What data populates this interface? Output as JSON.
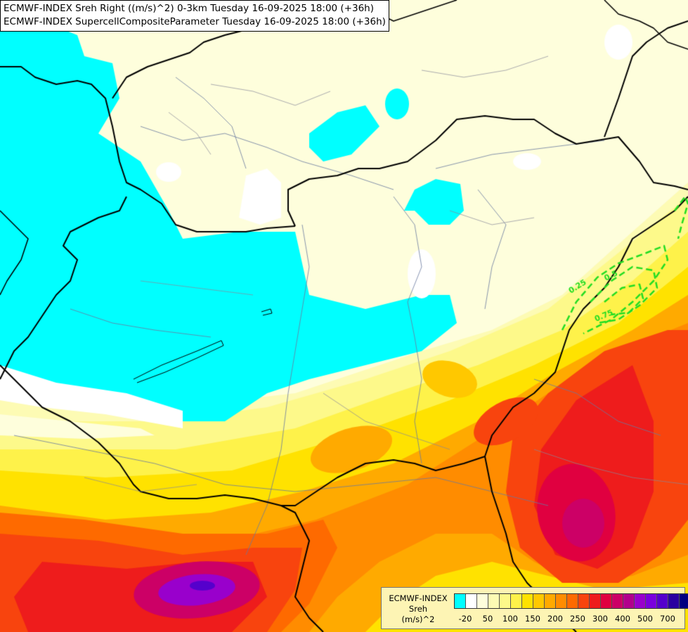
{
  "header": {
    "line1": "ECMWF-INDEX Sreh Right ((m/s)^2) 0-3km Tuesday 16-09-2025 18:00 (+36h)",
    "line2": "ECMWF-INDEX SupercellCompositeParameter Tuesday 16-09-2025 18:00 (+36h)"
  },
  "legend": {
    "title_line1": "ECMWF-INDEX",
    "title_line2": "Sreh",
    "title_line3": "(m/s)^2",
    "colors": [
      "#00ffff",
      "#ffffff",
      "#fefedc",
      "#fdfbb4",
      "#fdf98a",
      "#fef24a",
      "#ffe200",
      "#ffc800",
      "#ffaa00",
      "#ff8c00",
      "#fe6a00",
      "#f8440e",
      "#ee1c1c",
      "#e00040",
      "#cc0066",
      "#b2008c",
      "#9900cc",
      "#7a00dd",
      "#5500cc",
      "#2a00a0",
      "#000080"
    ],
    "ticks": [
      "-20",
      "50",
      "100",
      "150",
      "200",
      "250",
      "300",
      "400",
      "500",
      "700"
    ]
  },
  "contour_labels": [
    "0.25",
    "0.5",
    "0.75"
  ],
  "contour_color": "#22dd22"
}
